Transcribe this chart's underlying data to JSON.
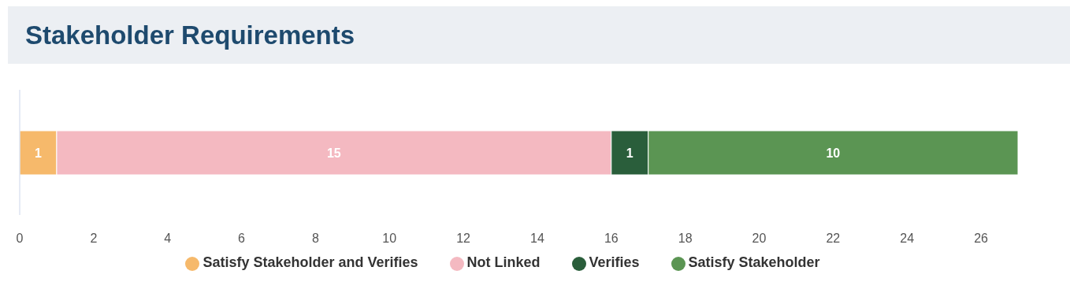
{
  "chart_data": {
    "type": "bar",
    "title": "Stakeholder Requirements",
    "orientation": "horizontal",
    "stacked": true,
    "categories": [
      null
    ],
    "series": [
      {
        "name": "Satisfy Stakeholder and Verifies",
        "color": "#f6b96b",
        "values": [
          1
        ]
      },
      {
        "name": "Not Linked",
        "color": "#f4b9c1",
        "values": [
          15
        ]
      },
      {
        "name": "Verifies",
        "color": "#2a5e3b",
        "values": [
          1
        ]
      },
      {
        "name": "Satisfy Stakeholder",
        "color": "#5b9553",
        "values": [
          10
        ]
      }
    ],
    "xlim": [
      0,
      27
    ],
    "xticks": [
      0,
      2,
      4,
      6,
      8,
      10,
      12,
      14,
      16,
      18,
      20,
      22,
      24,
      26
    ],
    "data_labels": true,
    "legend": "bottom",
    "grid": false
  }
}
